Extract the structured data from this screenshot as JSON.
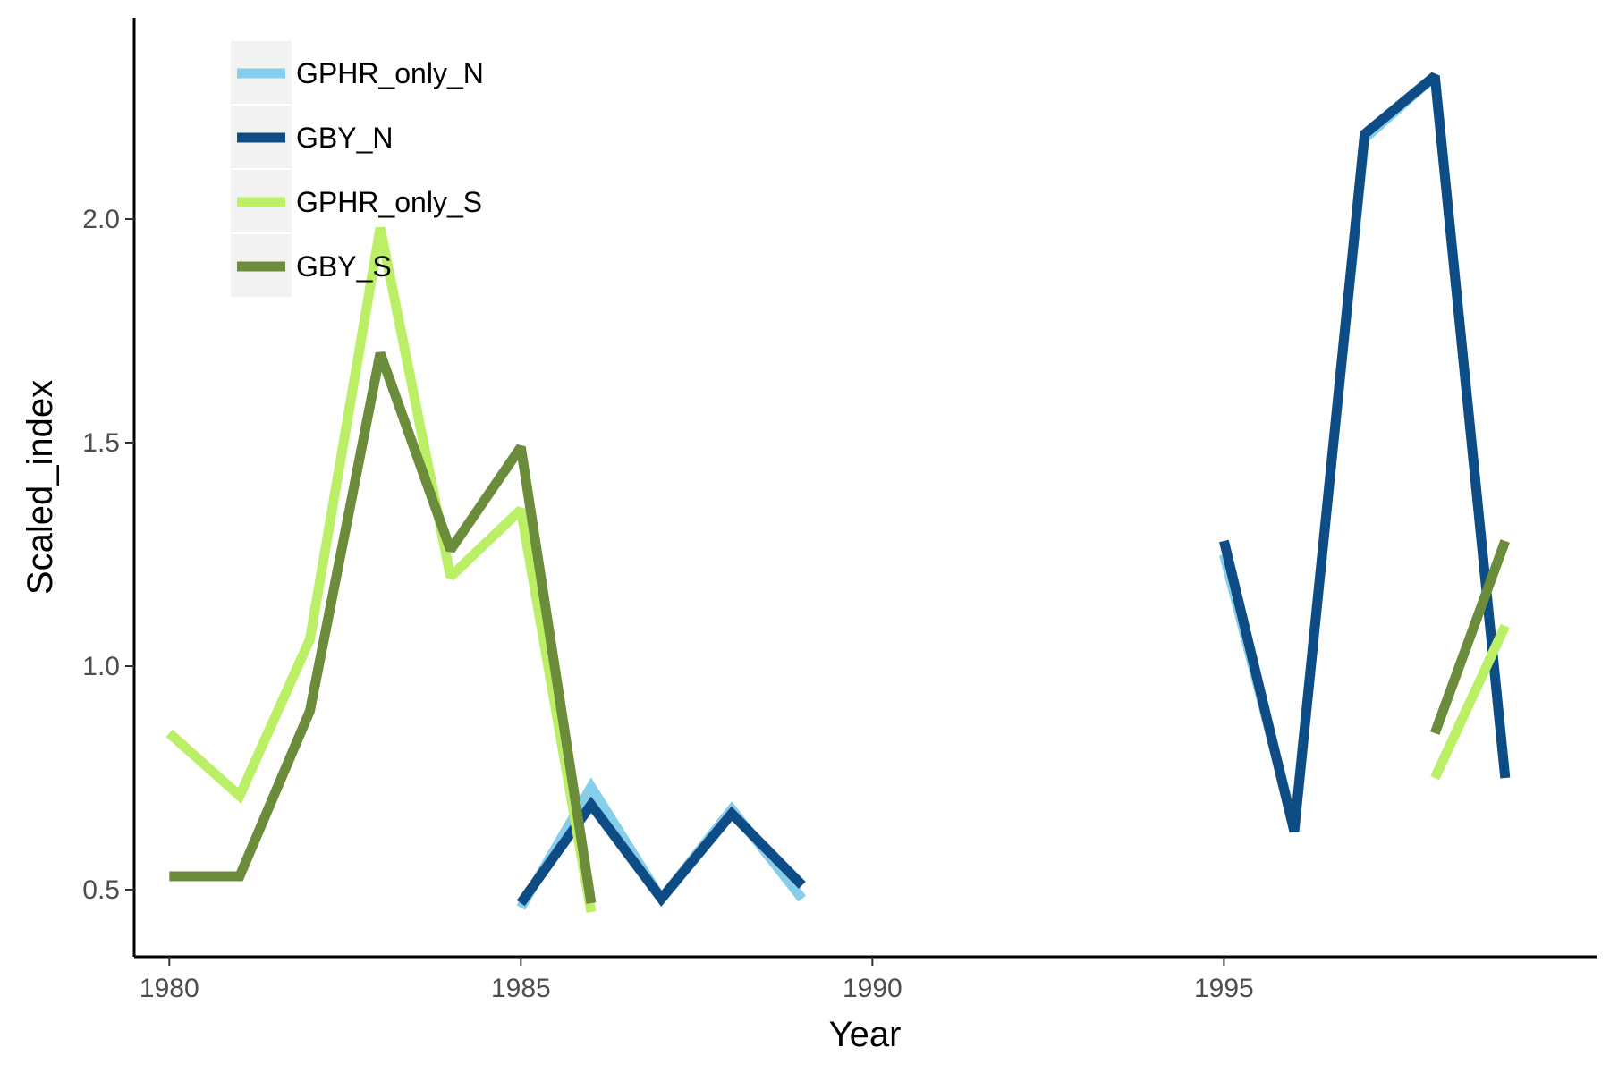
{
  "chart_data": {
    "type": "line",
    "xlabel": "Year",
    "ylabel": "Scaled_index",
    "xlim": [
      1979.5,
      2000.3
    ],
    "ylim": [
      0.35,
      2.45
    ],
    "xticks": [
      1980,
      1985,
      1990,
      1995
    ],
    "yticks": [
      0.5,
      1.0,
      1.5,
      2.0
    ],
    "ytick_labels": [
      "0.5",
      "1.0",
      "1.5",
      "2.0"
    ],
    "grid": false,
    "legend_position": "top-left",
    "series": [
      {
        "name": "GPHR_only_N",
        "color": "#87ceeb",
        "segments": [
          [
            [
              1985,
              0.46
            ],
            [
              1986,
              0.73
            ],
            [
              1987,
              0.48
            ],
            [
              1988,
              0.68
            ],
            [
              1989,
              0.48
            ]
          ],
          [
            [
              1995,
              1.25
            ],
            [
              1996,
              0.64
            ],
            [
              1997,
              2.18
            ],
            [
              1998,
              2.32
            ],
            [
              1999,
              0.75
            ]
          ]
        ]
      },
      {
        "name": "GBY_N",
        "color": "#0e4c86",
        "segments": [
          [
            [
              1985,
              0.47
            ],
            [
              1986,
              0.69
            ],
            [
              1987,
              0.48
            ],
            [
              1988,
              0.67
            ],
            [
              1989,
              0.51
            ]
          ],
          [
            [
              1995,
              1.28
            ],
            [
              1996,
              0.63
            ],
            [
              1997,
              2.19
            ],
            [
              1998,
              2.32
            ],
            [
              1999,
              0.75
            ]
          ]
        ]
      },
      {
        "name": "GPHR_only_S",
        "color": "#bbef65",
        "segments": [
          [
            [
              1980,
              0.85
            ],
            [
              1981,
              0.71
            ],
            [
              1982,
              1.06
            ],
            [
              1983,
              1.98
            ],
            [
              1984,
              1.2
            ],
            [
              1985,
              1.35
            ],
            [
              1986,
              0.45
            ]
          ],
          [
            [
              1998,
              0.75
            ],
            [
              1999,
              1.09
            ]
          ]
        ]
      },
      {
        "name": "GBY_S",
        "color": "#6b8c3a",
        "segments": [
          [
            [
              1980,
              0.53
            ],
            [
              1981,
              0.53
            ],
            [
              1982,
              0.9
            ],
            [
              1983,
              1.7
            ],
            [
              1984,
              1.26
            ],
            [
              1985,
              1.49
            ],
            [
              1986,
              0.47
            ]
          ],
          [
            [
              1998,
              0.85
            ],
            [
              1999,
              1.28
            ]
          ]
        ]
      }
    ]
  }
}
